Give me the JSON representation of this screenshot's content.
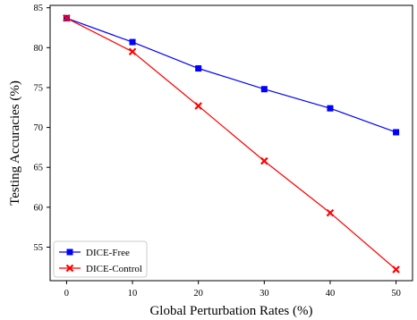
{
  "chart_data": {
    "type": "line",
    "title": "",
    "xlabel": "Global Perturbation Rates (%)",
    "ylabel": "Testing Accuracies (%)",
    "x": [
      0,
      10,
      20,
      30,
      40,
      50
    ],
    "xticks": [
      0,
      10,
      20,
      30,
      40,
      50
    ],
    "yticks": [
      55,
      60,
      65,
      70,
      75,
      80,
      85
    ],
    "xlim": [
      -2.5,
      52.5
    ],
    "ylim": [
      50.8,
      85.3
    ],
    "grid": false,
    "legend": "lower-left",
    "series": [
      {
        "name": "DICE-Free",
        "color": "#0000ff",
        "marker": "square",
        "values": [
          83.7,
          80.7,
          77.4,
          74.8,
          72.4,
          69.4
        ]
      },
      {
        "name": "DICE-Control",
        "color": "#ff0000",
        "marker": "x",
        "values": [
          83.7,
          79.5,
          72.7,
          65.8,
          59.3,
          52.2
        ]
      }
    ]
  }
}
